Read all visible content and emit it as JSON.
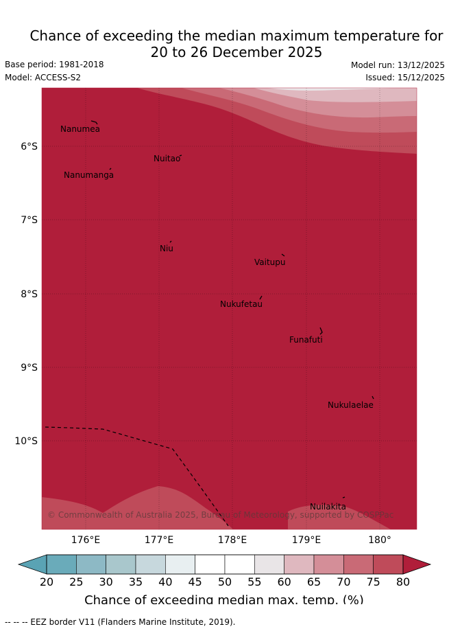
{
  "title": {
    "line1": "Chance of exceeding the median maximum temperature for",
    "line2": "20 to 26 December 2025"
  },
  "meta": {
    "base_period": "Base period: 1981-2018",
    "model": "Model: ACCESS-S2",
    "model_run": "Model run: 13/12/2025",
    "issued": "Issued: 15/12/2025"
  },
  "map": {
    "lon_ticks": [
      "176°E",
      "177°E",
      "178°E",
      "179°E",
      "180°"
    ],
    "lat_ticks": [
      "6°S",
      "7°S",
      "8°S",
      "9°S",
      "10°S"
    ],
    "islands": [
      "Nanumea",
      "Nuitao",
      "Nanumanga",
      "Niu",
      "Vaitupu",
      "Nukufetau",
      "Funafuti",
      "Nukulaelae",
      "Nuilakita"
    ],
    "copyright": "© Commonwealth of Australia 2025, Bureau of Meteorology, supported by COSPPac"
  },
  "colorbar": {
    "ticks": [
      "20",
      "25",
      "30",
      "35",
      "40",
      "45",
      "50",
      "55",
      "60",
      "65",
      "70",
      "75",
      "80"
    ],
    "colors": [
      "#6aabba",
      "#8db9c5",
      "#a9c7cc",
      "#c7d8dd",
      "#e8eff1",
      "#ffffff",
      "#ffffff",
      "#e9e5e7",
      "#dfb8bf",
      "#d48e98",
      "#c96a76",
      "#bf4b5a",
      "#b01e3a"
    ],
    "under_color": "#5aa3b4",
    "over_color": "#b01e3a",
    "label": "Chance of exceeding median max. temp. (%)"
  },
  "footer": {
    "legend": "-- -- -- EEZ border V11 (Flanders Marine Institute, 2019)."
  }
}
